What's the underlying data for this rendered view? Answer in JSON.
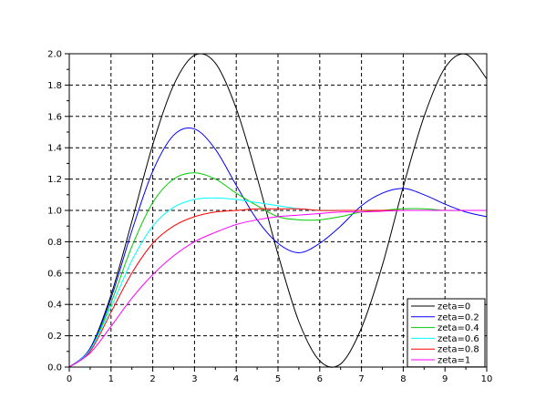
{
  "chart_data": {
    "type": "line",
    "title": "",
    "xlabel": "",
    "ylabel": "",
    "xlim": [
      0,
      10
    ],
    "ylim": [
      0,
      2
    ],
    "grid": true,
    "legend_position": "bottom-right",
    "x_ticks": [
      "0",
      "1",
      "2",
      "3",
      "4",
      "5",
      "6",
      "7",
      "8",
      "9",
      "10"
    ],
    "y_ticks": [
      "0.0",
      "0.2",
      "0.4",
      "0.6",
      "0.8",
      "1.0",
      "1.2",
      "1.4",
      "1.6",
      "1.8",
      "2.0"
    ],
    "x": [
      0,
      0.5,
      1,
      1.5,
      2,
      2.5,
      3,
      3.5,
      4,
      4.5,
      5,
      5.5,
      6,
      6.5,
      7,
      7.5,
      8,
      8.5,
      9,
      9.5,
      10
    ],
    "series": [
      {
        "name": "zeta=0",
        "color": "#000000",
        "values": [
          0,
          0.12,
          0.46,
          0.93,
          1.42,
          1.8,
          1.99,
          1.94,
          1.65,
          1.21,
          0.72,
          0.29,
          0.04,
          0.02,
          0.25,
          0.65,
          1.15,
          1.6,
          1.91,
          1.997,
          1.84
        ]
      },
      {
        "name": "zeta=0.2",
        "color": "#0000ff",
        "values": [
          0,
          0.12,
          0.44,
          0.87,
          1.25,
          1.48,
          1.52,
          1.39,
          1.16,
          0.94,
          0.79,
          0.73,
          0.79,
          0.9,
          1.03,
          1.11,
          1.14,
          1.1,
          1.04,
          0.99,
          0.96
        ]
      },
      {
        "name": "zeta=0.4",
        "color": "#00cc00",
        "values": [
          0,
          0.11,
          0.41,
          0.77,
          1.05,
          1.2,
          1.24,
          1.2,
          1.11,
          1.03,
          0.96,
          0.94,
          0.94,
          0.96,
          0.99,
          1.0,
          1.01,
          1.01,
          1.0,
          1.0,
          1.0
        ]
      },
      {
        "name": "zeta=0.6",
        "color": "#00ffff",
        "values": [
          0,
          0.11,
          0.38,
          0.68,
          0.9,
          1.02,
          1.07,
          1.08,
          1.07,
          1.05,
          1.03,
          1.01,
          1.0,
          1.0,
          1.0,
          1.0,
          1.0,
          1.0,
          1.0,
          1.0,
          1.0
        ]
      },
      {
        "name": "zeta=0.8",
        "color": "#ff0000",
        "values": [
          0,
          0.1,
          0.35,
          0.6,
          0.79,
          0.9,
          0.96,
          0.99,
          1.0,
          1.01,
          1.01,
          1.01,
          1.0,
          1.0,
          1.0,
          1.0,
          1.0,
          1.0,
          1.0,
          1.0,
          1.0
        ]
      },
      {
        "name": "zeta=1",
        "color": "#ff00ff",
        "values": [
          0,
          0.09,
          0.26,
          0.44,
          0.59,
          0.71,
          0.8,
          0.86,
          0.91,
          0.94,
          0.96,
          0.97,
          0.98,
          0.99,
          0.99,
          0.995,
          1.0,
          1.0,
          1.0,
          1.0,
          1.0
        ]
      }
    ]
  }
}
